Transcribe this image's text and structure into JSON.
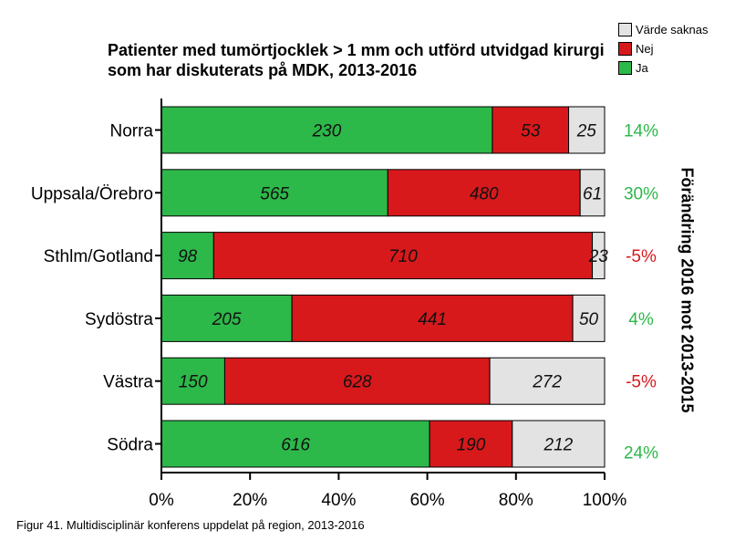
{
  "chart_data": {
    "type": "bar",
    "orientation": "horizontal",
    "stacked": "percent",
    "title": "Patienter med tumörtjocklek > 1 mm och utförd utvidgad kirurgi som har diskuterats på MDK, 2013-2016",
    "categories": [
      "Norra",
      "Uppsala/Örebro",
      "Sthlm/Gotland",
      "Sydöstra",
      "Västra",
      "Södra"
    ],
    "series": [
      {
        "name": "Ja",
        "color": "#2db84a",
        "values": [
          230,
          565,
          98,
          205,
          150,
          616
        ]
      },
      {
        "name": "Nej",
        "color": "#d7191c",
        "values": [
          53,
          480,
          710,
          441,
          628,
          190
        ]
      },
      {
        "name": "Värde saknas",
        "color": "#e3e3e3",
        "values": [
          25,
          61,
          23,
          50,
          272,
          212
        ]
      }
    ],
    "legend_order": [
      "Värde saknas",
      "Nej",
      "Ja"
    ],
    "legend_position": "top-right",
    "xlim": [
      0,
      100
    ],
    "xticks": [
      "0%",
      "20%",
      "40%",
      "60%",
      "80%",
      "100%"
    ],
    "change_label": "Förändring 2016 mot 2013-2015",
    "changes": [
      {
        "text": "14%",
        "color": "#2db84a"
      },
      {
        "text": "30%",
        "color": "#2db84a"
      },
      {
        "text": "-5%",
        "color": "#d7191c"
      },
      {
        "text": "4%",
        "color": "#2db84a"
      },
      {
        "text": "-5%",
        "color": "#d7191c"
      },
      {
        "text": "24%",
        "color": "#2db84a"
      }
    ]
  },
  "caption": "Figur 41. Multidisciplinär konferens uppdelat på region, 2013-2016"
}
